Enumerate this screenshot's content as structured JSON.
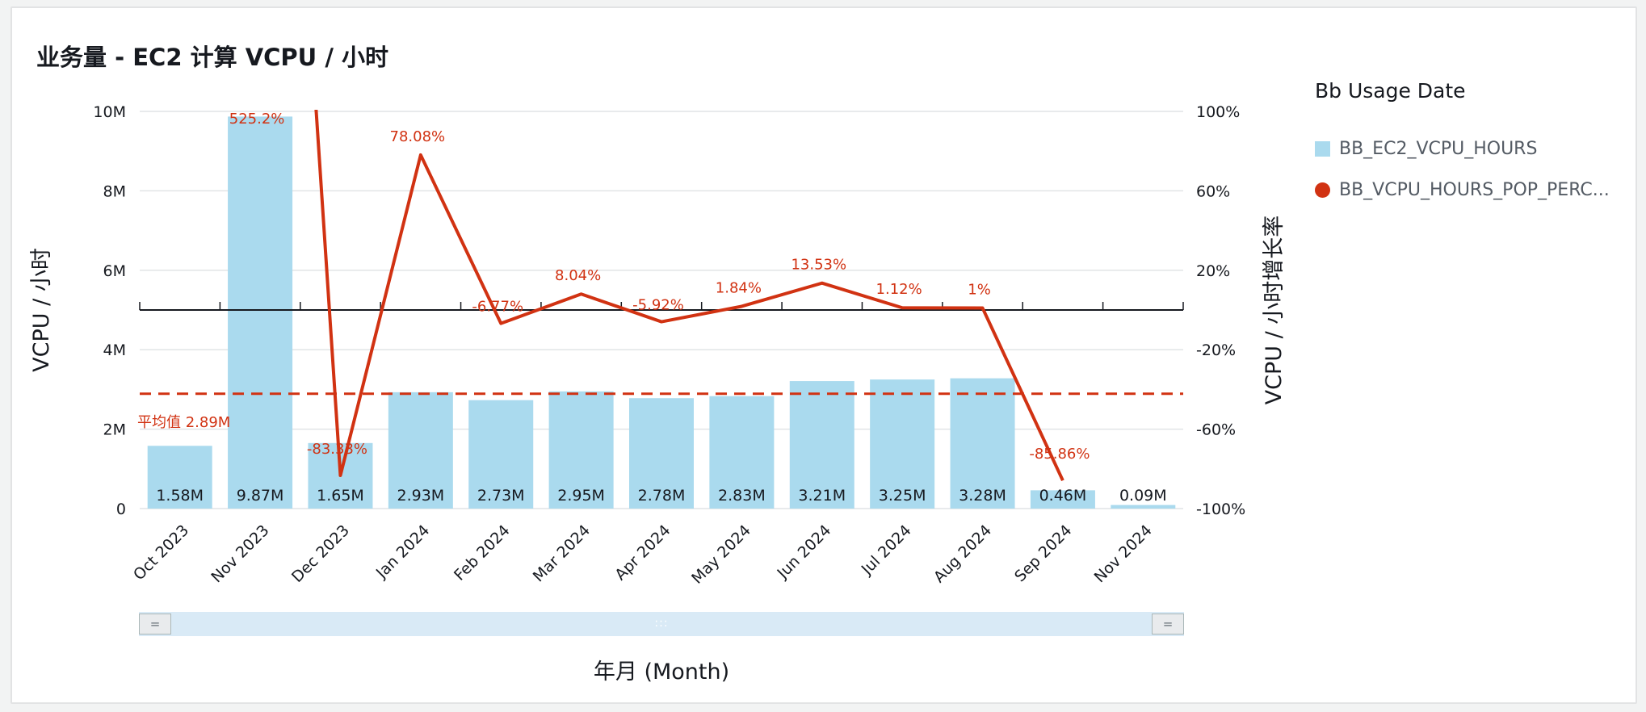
{
  "title": "业务量 - EC2 计算 VCPU / 小时",
  "legend": {
    "title": "Bb Usage Date",
    "items": [
      {
        "label": "BB_EC2_VCPU_HOURS",
        "color": "#aadaee",
        "shape": "square"
      },
      {
        "label": "BB_VCPU_HOURS_POP_PERC...",
        "color": "#d13212",
        "shape": "circle"
      }
    ]
  },
  "chart_data": {
    "type": "bar",
    "categories": [
      "Oct 2023",
      "Nov 2023",
      "Dec 2023",
      "Jan 2024",
      "Feb 2024",
      "Mar 2024",
      "Apr 2024",
      "May 2024",
      "Jun 2024",
      "Jul 2024",
      "Aug 2024",
      "Sep 2024",
      "Nov 2024"
    ],
    "xlabel": "年月 (Month)",
    "ylabel": "VCPU / 小时",
    "y2label": "VCPU / 小时增长率",
    "ylim": [
      0,
      10000000
    ],
    "y2lim": [
      -100,
      100
    ],
    "yticks": [
      "0",
      "2M",
      "4M",
      "6M",
      "8M",
      "10M"
    ],
    "y2ticks": [
      "-100%",
      "-60%",
      "-20%",
      "20%",
      "60%",
      "100%"
    ],
    "bars": {
      "name": "BB_EC2_VCPU_HOURS",
      "color": "#aadaee",
      "values": [
        1580000,
        9870000,
        1650000,
        2930000,
        2730000,
        2950000,
        2780000,
        2830000,
        3210000,
        3250000,
        3280000,
        460000,
        90000
      ],
      "labels": [
        "1.58M",
        "9.87M",
        "1.65M",
        "2.93M",
        "2.73M",
        "2.95M",
        "2.78M",
        "2.83M",
        "3.21M",
        "3.25M",
        "3.28M",
        "0.46M",
        "0.09M"
      ]
    },
    "line": {
      "name": "BB_VCPU_HOURS_POP_PERC...",
      "color": "#d13212",
      "values": [
        525.2,
        -83.33,
        78.08,
        -6.77,
        8.04,
        -5.92,
        1.84,
        13.53,
        1.12,
        1,
        -85.86
      ],
      "labels": [
        "525.2%",
        "-83.33%",
        "78.08%",
        "-6.77%",
        "8.04%",
        "-5.92%",
        "1.84%",
        "13.53%",
        "1.12%",
        "1%",
        "-85.86%"
      ],
      "start_index": 1
    },
    "average": {
      "value": 2890000,
      "label": "平均值 2.89M",
      "color": "#d13212"
    },
    "zero_reference": 0,
    "grid": true,
    "legend_position": "right"
  },
  "scrollbar": {
    "left_handle": "=",
    "right_handle": "=",
    "grip": ":::"
  }
}
